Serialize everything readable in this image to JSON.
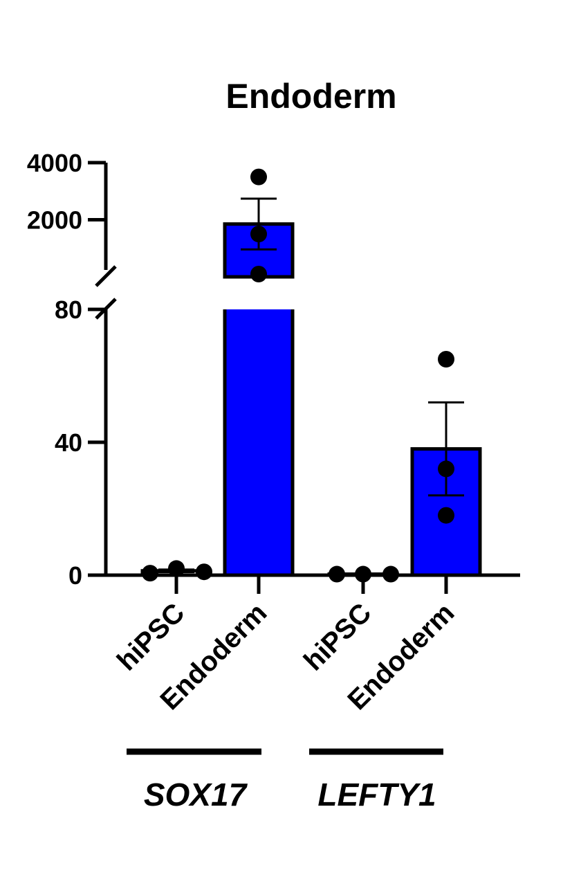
{
  "chart_data": {
    "type": "bar",
    "title": "Endoderm",
    "xlabel": "",
    "ylabel": "",
    "y_axis": {
      "broken": true,
      "lower_segment": {
        "range": [
          0,
          80
        ],
        "ticks": [
          "0",
          "40",
          "80"
        ]
      },
      "upper_segment": {
        "range": [
          0,
          4000
        ],
        "ticks": [
          "2000",
          "4000"
        ]
      }
    },
    "groups": [
      {
        "name": "SOX17",
        "categories": [
          "hiPSC",
          "Endoderm"
        ]
      },
      {
        "name": "LEFTY1",
        "categories": [
          "hiPSC",
          "Endoderm"
        ]
      }
    ],
    "bars": [
      {
        "group": "SOX17",
        "category": "hiPSC",
        "value": 1.3,
        "sem": 0.4,
        "points": [
          0.6,
          2.0,
          1.0
        ]
      },
      {
        "group": "SOX17",
        "category": "Endoderm",
        "value": 1850,
        "sem": 890,
        "points": [
          3500,
          1500,
          0
        ]
      },
      {
        "group": "LEFTY1",
        "category": "hiPSC",
        "value": 0.3,
        "sem": 0,
        "points": [
          0.3,
          0.3,
          0.3
        ]
      },
      {
        "group": "LEFTY1",
        "category": "Endoderm",
        "value": 38,
        "sem": 14,
        "points": [
          65,
          32,
          18
        ]
      }
    ],
    "colors": {
      "highlight_bar": "#0000ff",
      "baseline_bar": "#ffffff",
      "stroke": "#000000"
    },
    "grid": false
  }
}
